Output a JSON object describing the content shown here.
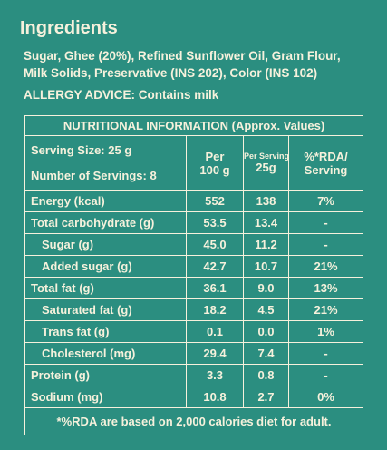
{
  "ingredients": {
    "title": "Ingredients",
    "lines": [
      "Sugar, Ghee (20%), Refined Sunflower Oil, Gram Flour,",
      "Milk Solids, Preservative (INS 202), Color (INS 102)"
    ],
    "allergy": "ALLERGY ADVICE: Contains milk"
  },
  "table": {
    "title": "NUTRITIONAL INFORMATION (Approx. Values)",
    "serving_size": "Serving Size: 25 g",
    "servings": "Number of Servings: 8",
    "col_headers": [
      [
        "Per",
        "100 g"
      ],
      [
        "Per Serving",
        "25g"
      ],
      [
        "%*RDA/",
        "Serving"
      ]
    ],
    "rows": [
      {
        "label": "Energy (kcal)",
        "per_100g": "552",
        "per_serving": "138",
        "rda": "7%",
        "indent": false
      },
      {
        "label": "Total carbohydrate (g)",
        "per_100g": "53.5",
        "per_serving": "13.4",
        "rda": "-",
        "indent": false
      },
      {
        "label": "Sugar (g)",
        "per_100g": "45.0",
        "per_serving": "11.2",
        "rda": "-",
        "indent": true
      },
      {
        "label": "Added sugar (g)",
        "per_100g": "42.7",
        "per_serving": "10.7",
        "rda": "21%",
        "indent": true
      },
      {
        "label": "Total fat (g)",
        "per_100g": "36.1",
        "per_serving": "9.0",
        "rda": "13%",
        "indent": false
      },
      {
        "label": "Saturated fat (g)",
        "per_100g": "18.2",
        "per_serving": "4.5",
        "rda": "21%",
        "indent": true
      },
      {
        "label": "Trans fat (g)",
        "per_100g": "0.1",
        "per_serving": "0.0",
        "rda": "1%",
        "indent": true
      },
      {
        "label": "Cholesterol (mg)",
        "per_100g": "29.4",
        "per_serving": "7.4",
        "rda": "-",
        "indent": true
      },
      {
        "label": "Protein (g)",
        "per_100g": "3.3",
        "per_serving": "0.8",
        "rda": "-",
        "indent": false
      },
      {
        "label": "Sodium (mg)",
        "per_100g": "10.8",
        "per_serving": "2.7",
        "rda": "0%",
        "indent": false
      }
    ],
    "footnote": "*%RDA are based on 2,000 calories diet for adult."
  }
}
